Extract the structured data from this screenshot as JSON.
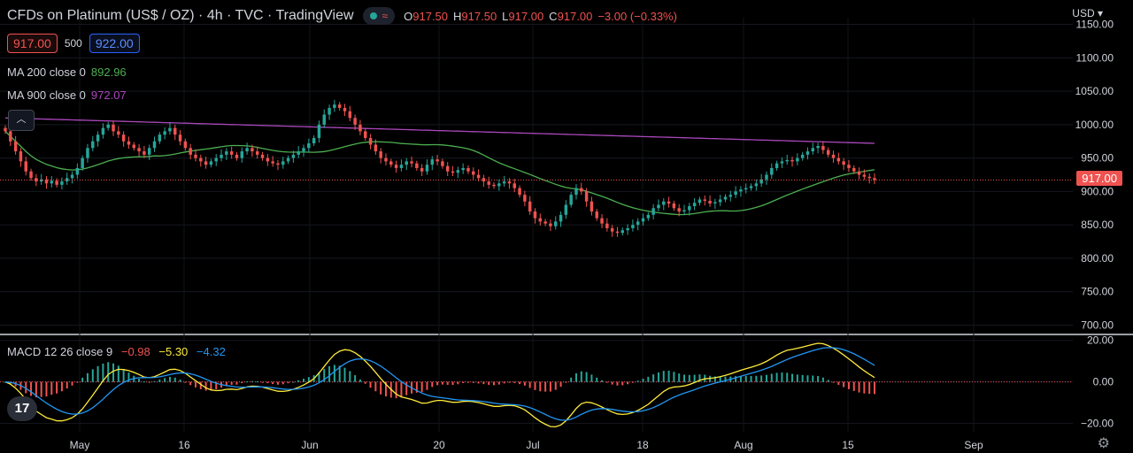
{
  "header": {
    "title": "CFDs on Platinum (US$ / OZ) · 4h · TVC · TradingView",
    "ohlc": [
      {
        "k": "O",
        "v": "917.50"
      },
      {
        "k": "H",
        "v": "917.50"
      },
      {
        "k": "L",
        "v": "917.00"
      },
      {
        "k": "C",
        "v": "917.00"
      },
      {
        "k": "",
        "v": "−3.00 (−0.33%)"
      }
    ]
  },
  "bidask": {
    "bid": "917.00",
    "spread": "500",
    "ask": "922.00"
  },
  "indicators": {
    "ma200": {
      "name": "MA 200 close 0",
      "value": "892.96",
      "color": "#4caf50"
    },
    "ma900": {
      "name": "MA 900 close 0",
      "value": "972.07",
      "color": "#ab47bc"
    }
  },
  "macd": {
    "name": "MACD 12 26 close 9",
    "hist": "−0.98",
    "macd": "−5.30",
    "signal": "−4.32",
    "hist_color": "#ef5350",
    "macd_color": "#ffeb3b",
    "signal_color": "#2196f3"
  },
  "currency": "USD",
  "last_price": "917.00",
  "colors": {
    "up": "#26a69a",
    "down": "#ef5350",
    "bg": "#000000"
  },
  "price_axis": [
    "1150.00",
    "1100.00",
    "1050.00",
    "1000.00",
    "950.00",
    "900.00",
    "850.00",
    "800.00",
    "750.00",
    "700.00"
  ],
  "macd_axis": [
    "20.00",
    "0.00",
    "−20.00"
  ],
  "time_axis": [
    "May",
    "16",
    "Jun",
    "20",
    "Jul",
    "18",
    "Aug",
    "15",
    "Sep"
  ],
  "logo": "17",
  "icons": {
    "collapse": "chevron-up-icon",
    "settings": "gear-icon",
    "logo": "tradingview-logo-icon"
  },
  "chart_data": {
    "type": "candlestick",
    "price_range": [
      690,
      1160
    ],
    "macd_range": [
      -24,
      22
    ],
    "close": [
      990,
      975,
      960,
      945,
      930,
      920,
      915,
      918,
      912,
      916,
      910,
      915,
      920,
      925,
      935,
      950,
      965,
      975,
      985,
      995,
      1000,
      990,
      985,
      975,
      970,
      965,
      960,
      955,
      965,
      975,
      985,
      990,
      995,
      985,
      975,
      965,
      955,
      950,
      945,
      940,
      945,
      950,
      955,
      960,
      955,
      950,
      960,
      965,
      960,
      955,
      950,
      945,
      942,
      940,
      945,
      950,
      955,
      960,
      965,
      972,
      980,
      1000,
      1015,
      1025,
      1030,
      1025,
      1020,
      1010,
      1000,
      990,
      980,
      970,
      960,
      950,
      945,
      940,
      935,
      940,
      945,
      942,
      935,
      930,
      940,
      948,
      945,
      938,
      930,
      928,
      932,
      935,
      930,
      925,
      920,
      915,
      910,
      908,
      912,
      915,
      912,
      905,
      895,
      885,
      870,
      860,
      855,
      852,
      848,
      855,
      865,
      880,
      895,
      905,
      900,
      885,
      870,
      860,
      852,
      845,
      840,
      838,
      842,
      845,
      850,
      855,
      860,
      865,
      875,
      880,
      885,
      882,
      875,
      870,
      872,
      878,
      883,
      888,
      886,
      882,
      884,
      888,
      892,
      895,
      900,
      903,
      905,
      908,
      912,
      918,
      925,
      935,
      942,
      945,
      947,
      945,
      950,
      955,
      960,
      965,
      968,
      962,
      955,
      950,
      945,
      940,
      935,
      930,
      925,
      922,
      920,
      917
    ]
  }
}
